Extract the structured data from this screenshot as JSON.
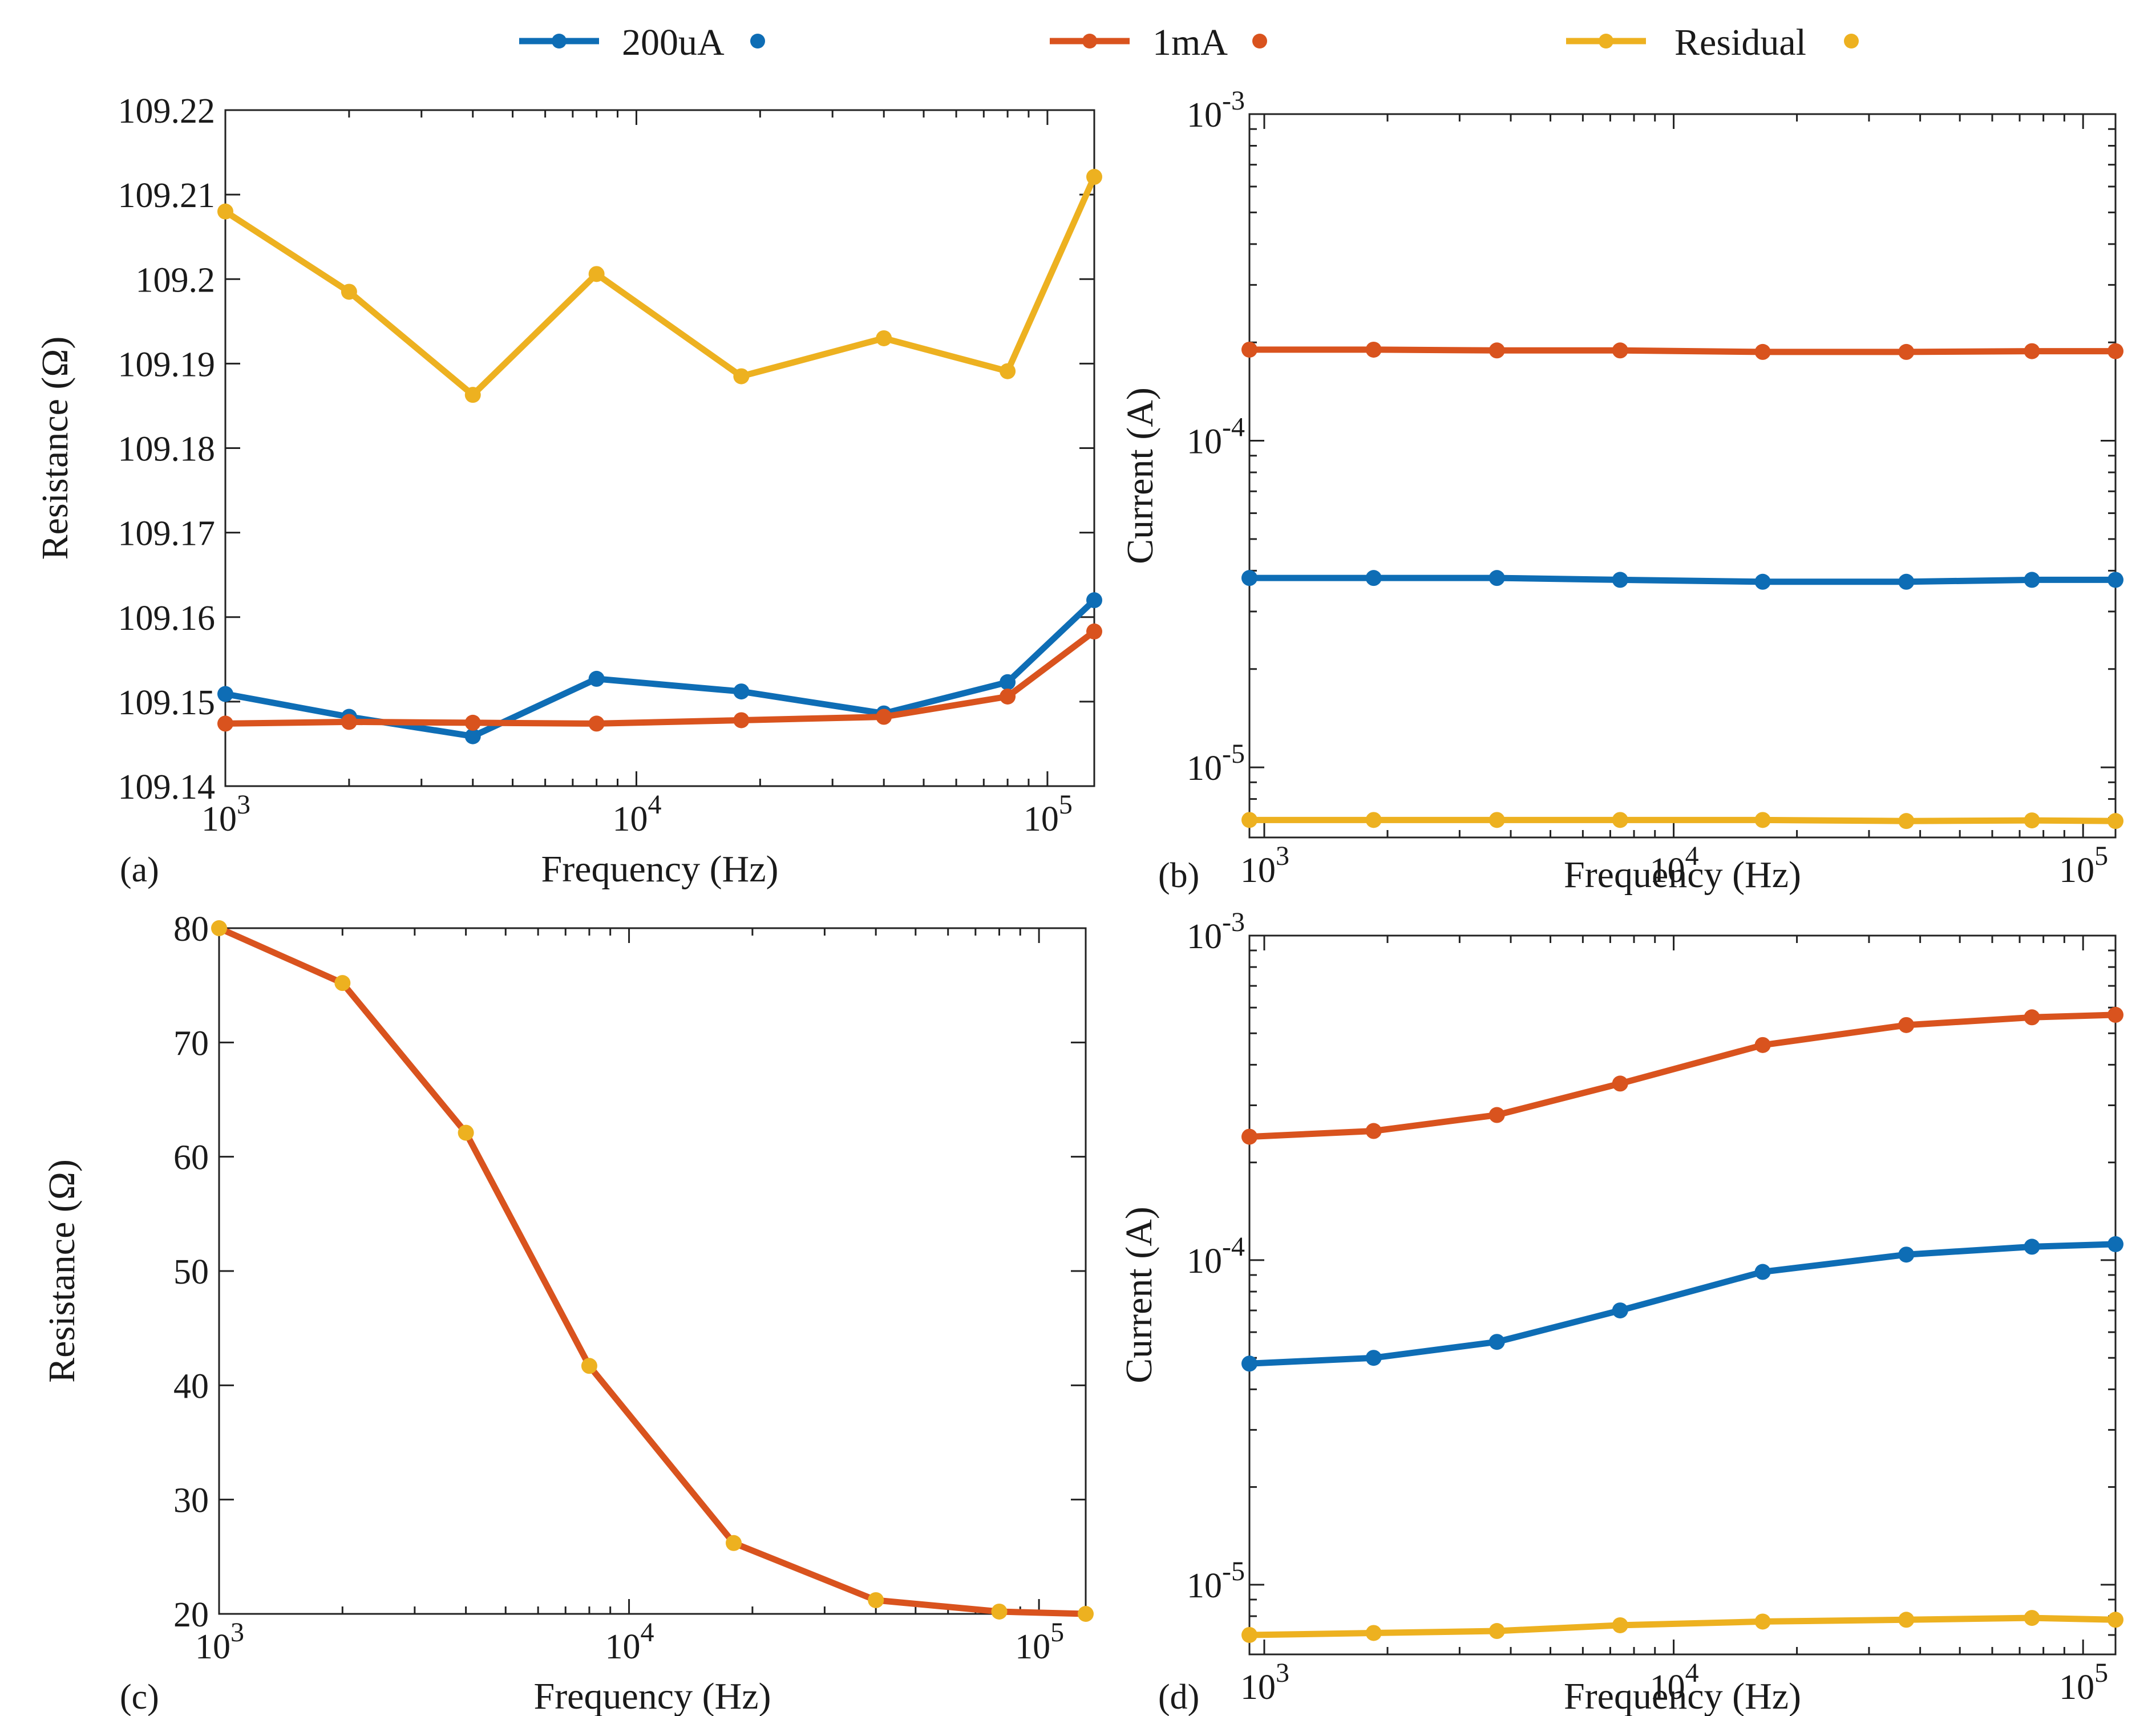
{
  "legend": {
    "items": [
      {
        "label": "200uA",
        "color": "#0E6DB5"
      },
      {
        "label": "1mA",
        "color": "#D9531E"
      },
      {
        "label": "Residual",
        "color": "#EDB120"
      }
    ]
  },
  "chart_data": [
    {
      "id": "a",
      "panel_label": "(a)",
      "type": "line",
      "xscale": "log",
      "xlabel": "Frequency (Hz)",
      "ylabel": "Resistance (Ω)",
      "xlim": [
        1000,
        130000
      ],
      "ylim": [
        109.14,
        109.22
      ],
      "xticks": [
        {
          "v": 1000,
          "exp": "3"
        },
        {
          "v": 10000,
          "exp": "4"
        },
        {
          "v": 100000,
          "exp": "5"
        }
      ],
      "yticks": [
        {
          "v": 109.14,
          "label": "109.14"
        },
        {
          "v": 109.15,
          "label": "109.15"
        },
        {
          "v": 109.16,
          "label": "109.16"
        },
        {
          "v": 109.17,
          "label": "109.17"
        },
        {
          "v": 109.18,
          "label": "109.18"
        },
        {
          "v": 109.19,
          "label": "109.19"
        },
        {
          "v": 109.2,
          "label": "109.2"
        },
        {
          "v": 109.21,
          "label": "109.21"
        },
        {
          "v": 109.22,
          "label": "109.22"
        }
      ],
      "x": [
        1000,
        2000,
        4000,
        8000,
        18000,
        40000,
        80000,
        130000
      ],
      "series": [
        {
          "name": "200uA",
          "color": "#0E6DB5",
          "marker_color": "#0E6DB5",
          "values": [
            109.1509,
            109.1482,
            109.1459,
            109.1527,
            109.1512,
            109.1486,
            109.1523,
            109.162
          ]
        },
        {
          "name": "1mA",
          "color": "#D9531E",
          "marker_color": "#D9531E",
          "values": [
            109.1474,
            109.1476,
            109.1475,
            109.1474,
            109.1478,
            109.1482,
            109.1506,
            109.1583
          ]
        },
        {
          "name": "Residual",
          "color": "#EDB120",
          "marker_color": "#EDB120",
          "values": [
            109.208,
            109.1985,
            109.1863,
            109.2006,
            109.1885,
            109.193,
            109.1891,
            109.2121
          ]
        }
      ]
    },
    {
      "id": "b",
      "panel_label": "(b)",
      "type": "line",
      "xscale": "log",
      "yscale": "log",
      "xlabel": "Frequency (Hz)",
      "ylabel": "Current (A)",
      "xlim": [
        920,
        120000
      ],
      "ylim": [
        6.1e-06,
        0.001
      ],
      "xticks": [
        {
          "v": 1000,
          "exp": "3"
        },
        {
          "v": 10000,
          "exp": "4"
        },
        {
          "v": 100000,
          "exp": "5"
        }
      ],
      "yticks": [
        {
          "v": 1e-05,
          "exp": "-5"
        },
        {
          "v": 0.0001,
          "exp": "-4"
        },
        {
          "v": 0.001,
          "exp": "-3"
        }
      ],
      "x": [
        920,
        1850,
        3700,
        7400,
        16500,
        37000,
        75000,
        120000
      ],
      "series": [
        {
          "name": "200uA",
          "color": "#0E6DB5",
          "marker_color": "#0E6DB5",
          "values": [
            3.8e-05,
            3.8e-05,
            3.8e-05,
            3.75e-05,
            3.7e-05,
            3.7e-05,
            3.75e-05,
            3.75e-05
          ]
        },
        {
          "name": "1mA",
          "color": "#D9531E",
          "marker_color": "#D9531E",
          "values": [
            0.00019,
            0.00019,
            0.000189,
            0.000189,
            0.000187,
            0.000187,
            0.000188,
            0.000188
          ]
        },
        {
          "name": "Residual",
          "color": "#EDB120",
          "marker_color": "#EDB120",
          "values": [
            6.9e-06,
            6.9e-06,
            6.9e-06,
            6.9e-06,
            6.9e-06,
            6.85e-06,
            6.88e-06,
            6.85e-06
          ]
        }
      ]
    },
    {
      "id": "c",
      "panel_label": "(c)",
      "type": "line",
      "xscale": "log",
      "xlabel": "Frequency (Hz)",
      "ylabel": "Resistance (Ω)",
      "xlim": [
        1000,
        130000
      ],
      "ylim": [
        20,
        80
      ],
      "xticks": [
        {
          "v": 1000,
          "exp": "3"
        },
        {
          "v": 10000,
          "exp": "4"
        },
        {
          "v": 100000,
          "exp": "5"
        }
      ],
      "yticks": [
        {
          "v": 20,
          "label": "20"
        },
        {
          "v": 30,
          "label": "30"
        },
        {
          "v": 40,
          "label": "40"
        },
        {
          "v": 50,
          "label": "50"
        },
        {
          "v": 60,
          "label": "60"
        },
        {
          "v": 70,
          "label": "70"
        },
        {
          "v": 80,
          "label": "80"
        }
      ],
      "x": [
        1000,
        2000,
        4000,
        8000,
        18000,
        40000,
        80000,
        130000
      ],
      "series": [
        {
          "name": "1mA",
          "color": "#D9531E",
          "marker_color": "#EDB120",
          "values": [
            80,
            75.2,
            62.1,
            41.7,
            26.2,
            21.2,
            20.2,
            20
          ]
        }
      ]
    },
    {
      "id": "d",
      "panel_label": "(d)",
      "type": "line",
      "xscale": "log",
      "yscale": "log",
      "xlabel": "Frequency (Hz)",
      "ylabel": "Current (A)",
      "xlim": [
        920,
        120000
      ],
      "ylim": [
        6.1e-06,
        0.001
      ],
      "xticks": [
        {
          "v": 1000,
          "exp": "3"
        },
        {
          "v": 10000,
          "exp": "4"
        },
        {
          "v": 100000,
          "exp": "5"
        }
      ],
      "yticks": [
        {
          "v": 1e-05,
          "exp": "-5"
        },
        {
          "v": 0.0001,
          "exp": "-4"
        },
        {
          "v": 0.001,
          "exp": "-3"
        }
      ],
      "x": [
        920,
        1850,
        3700,
        7400,
        16500,
        37000,
        75000,
        120000
      ],
      "series": [
        {
          "name": "200uA",
          "color": "#0E6DB5",
          "marker_color": "#0E6DB5",
          "values": [
            4.8e-05,
            5e-05,
            5.6e-05,
            7e-05,
            9.2e-05,
            0.000104,
            0.00011,
            0.000112
          ]
        },
        {
          "name": "1mA",
          "color": "#D9531E",
          "marker_color": "#D9531E",
          "values": [
            0.00024,
            0.00025,
            0.00028,
            0.00035,
            0.00046,
            0.00053,
            0.00056,
            0.00057
          ]
        },
        {
          "name": "Residual",
          "color": "#EDB120",
          "marker_color": "#EDB120",
          "values": [
            7e-06,
            7.1e-06,
            7.2e-06,
            7.5e-06,
            7.7e-06,
            7.8e-06,
            7.9e-06,
            7.8e-06
          ]
        }
      ]
    }
  ]
}
